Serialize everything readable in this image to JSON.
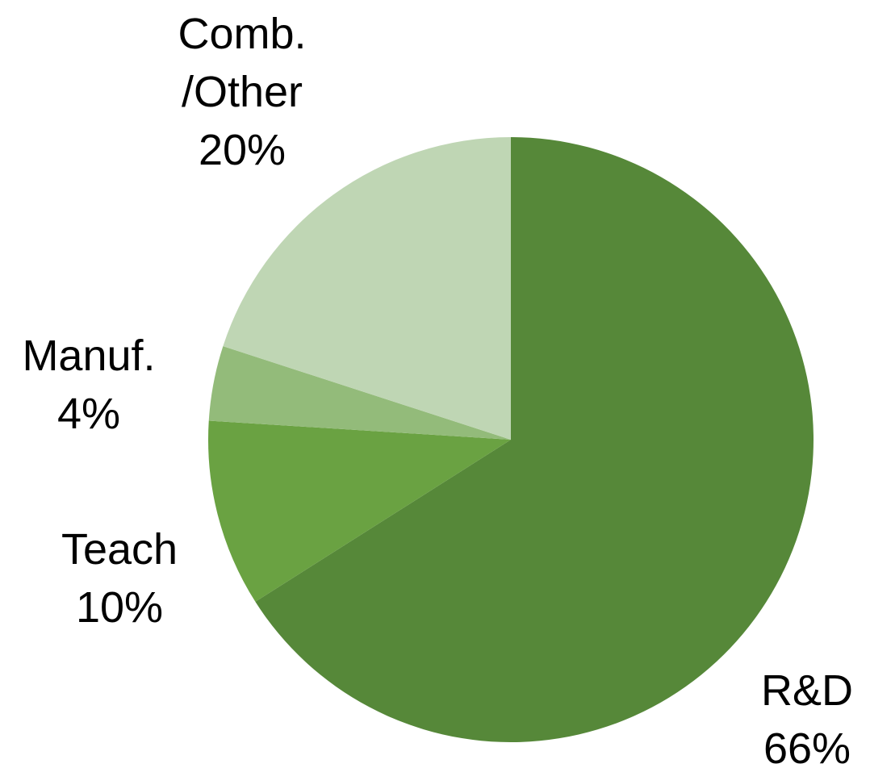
{
  "chart_data": {
    "type": "pie",
    "categories": [
      "R&D",
      "Teach",
      "Manuf.",
      "Comb.\n/Other"
    ],
    "values": [
      66,
      10,
      4,
      20
    ],
    "value_labels": [
      "66%",
      "10%",
      "4%",
      "20%"
    ],
    "colors": [
      "#568839",
      "#6aa242",
      "#93bb7a",
      "#bfd6b4"
    ]
  }
}
